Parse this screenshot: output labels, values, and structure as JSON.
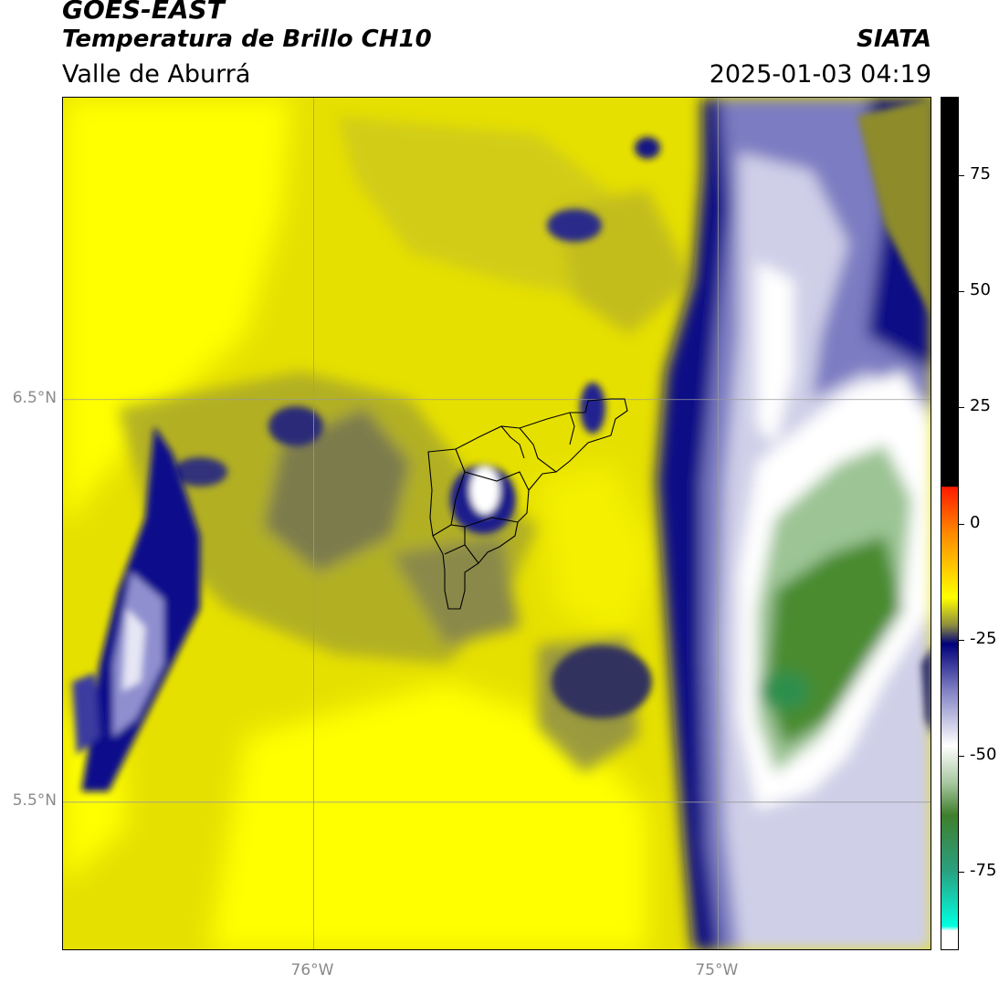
{
  "header": {
    "satellite": "GOES-EAST",
    "product": "Temperatura de Brillo CH10",
    "region": "Valle de Aburrá",
    "agency": "SIATA",
    "datetime": "2025-01-03 04:19"
  },
  "axes": {
    "lat_labels": [
      {
        "label": "6.5°N",
        "value": 6.5
      },
      {
        "label": "5.5°N",
        "value": 5.5
      }
    ],
    "lon_labels": [
      {
        "label": "76°W",
        "value": -76
      },
      {
        "label": "75°W",
        "value": -75
      }
    ],
    "lon_range": [
      -76.62,
      -74.47
    ],
    "lat_range": [
      5.13,
      7.25
    ],
    "grid": true
  },
  "colorbar": {
    "ticks": [
      75,
      50,
      25,
      0,
      -25,
      -50,
      -75
    ],
    "range": [
      -92,
      92
    ],
    "stops": [
      {
        "value": 92,
        "color": "#000000"
      },
      {
        "value": 8,
        "color": "#000000"
      },
      {
        "value": 7.9,
        "color": "#ff1a00"
      },
      {
        "value": -2,
        "color": "#ff8800"
      },
      {
        "value": -12,
        "color": "#ffdd00"
      },
      {
        "value": -16,
        "color": "#ffff00"
      },
      {
        "value": -22,
        "color": "#8c8c40"
      },
      {
        "value": -26,
        "color": "#00007a"
      },
      {
        "value": -36,
        "color": "#8080c4"
      },
      {
        "value": -48,
        "color": "#ffffff"
      },
      {
        "value": -56,
        "color": "#a8c8a0"
      },
      {
        "value": -63,
        "color": "#3f7f2c"
      },
      {
        "value": -75,
        "color": "#2aa080"
      },
      {
        "value": -87,
        "color": "#00ffe0"
      },
      {
        "value": -88,
        "color": "#ffffff"
      }
    ]
  },
  "colors": {
    "yellow": "#ffff00",
    "olive": "#8c8c3a",
    "navy": "#000080",
    "white": "#ffffff",
    "green": "#3f8a2a",
    "boundary": "#000000"
  }
}
